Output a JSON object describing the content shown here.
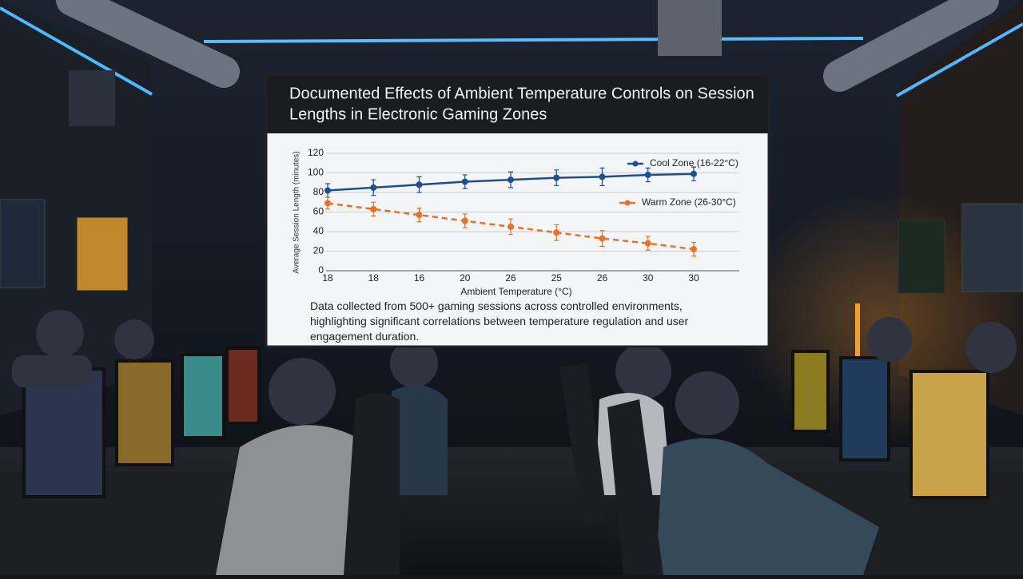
{
  "chart_data": {
    "type": "line",
    "title": "Documented Effects of Ambient Temperature Controls on Session Lengths in Electronic Gaming Zones",
    "x_label": "Ambient Temperature (°C)",
    "y_label": "Average Session Length (minutes)",
    "categories": [
      "18",
      "18",
      "16",
      "20",
      "26",
      "25",
      "26",
      "30",
      "30"
    ],
    "series": [
      {
        "name": "Cool Zone (16-22°C)",
        "color": "#1f4e8c",
        "values": [
          82,
          85,
          88,
          91,
          93,
          95,
          96,
          98,
          99
        ],
        "errors": [
          7,
          8,
          8,
          7,
          8,
          8,
          9,
          7,
          7
        ]
      },
      {
        "name": "Warm Zone (26-30°C)",
        "color": "#e8712a",
        "values": [
          69,
          63,
          57,
          51,
          45,
          39,
          33,
          28,
          22
        ],
        "errors": [
          6,
          7,
          7,
          7,
          8,
          8,
          8,
          7,
          7
        ]
      }
    ],
    "ylim": [
      0,
      120
    ],
    "yticks": [
      0,
      20,
      40,
      60,
      80,
      100,
      120
    ],
    "grid": true,
    "legend": "upper right",
    "caption": "Data collected from 500+ gaming sessions across controlled environments, highlighting significant correlations between temperature regulation and user engagement duration."
  }
}
